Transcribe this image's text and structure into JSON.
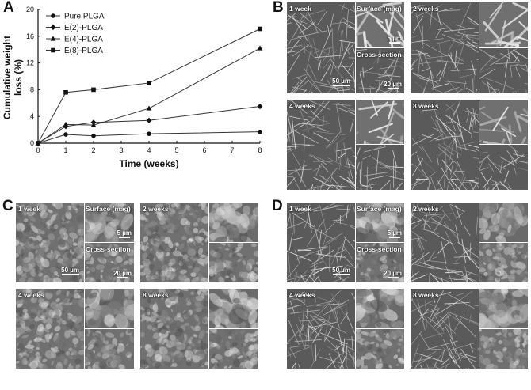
{
  "panels": {
    "A": "A",
    "B": "B",
    "C": "C",
    "D": "D"
  },
  "chart_data": {
    "type": "line",
    "xlabel": "Time (weeks)",
    "ylabel": "Cumulative weight loss (%)",
    "ylabel_lines": [
      "Cumulative weight",
      "loss (%)"
    ],
    "xlim": [
      0,
      8
    ],
    "ylim": [
      0,
      20
    ],
    "xticks": [
      "0",
      "1",
      "2",
      "3",
      "4",
      "5",
      "6",
      "7",
      "8"
    ],
    "yticks": [
      "0",
      "4",
      "8",
      "12",
      "16",
      "20"
    ],
    "legend_position": "top-left",
    "grid": false,
    "series": [
      {
        "name": "Pure PLGA",
        "marker": "circle",
        "x": [
          0,
          1,
          2,
          4,
          8
        ],
        "y": [
          0,
          1.3,
          1.1,
          1.4,
          1.7
        ]
      },
      {
        "name": "E(2)-PLGA",
        "marker": "diamond",
        "x": [
          0,
          1,
          2,
          4,
          8
        ],
        "y": [
          0,
          2.5,
          3.1,
          3.4,
          5.5
        ]
      },
      {
        "name": "E(4)-PLGA",
        "marker": "triangle",
        "x": [
          0,
          1,
          2,
          4,
          8
        ],
        "y": [
          0,
          2.8,
          2.7,
          5.2,
          14.2
        ]
      },
      {
        "name": "E(8)-PLGA",
        "marker": "square",
        "x": [
          0,
          1,
          2,
          4,
          8
        ],
        "y": [
          0,
          7.6,
          8.0,
          9.0,
          17.1
        ]
      }
    ]
  },
  "sem": {
    "B": {
      "tl": {
        "label": "1 week",
        "surface": "Surface (mag)",
        "cross": "Cross-section",
        "scale_main": "50 µm",
        "scale_surface": "5 µm",
        "scale_cross": "20 µm"
      },
      "tr": {
        "label": "2 weeks"
      },
      "bl": {
        "label": "4 weeks"
      },
      "br": {
        "label": "8 weeks"
      }
    },
    "C": {
      "tl": {
        "label": "1 week",
        "surface": "Surface (mag)",
        "cross": "Cross-section",
        "scale_main": "50 µm",
        "scale_surface": "5 µm",
        "scale_cross": "20 µm"
      },
      "tr": {
        "label": "2 weeks"
      },
      "bl": {
        "label": "4 weeks"
      },
      "br": {
        "label": "8 weeks"
      }
    },
    "D": {
      "tl": {
        "label": "1 week",
        "surface": "Surface (mag)",
        "cross": "Cross-section",
        "scale_main": "50 µm",
        "scale_surface": "5 µm",
        "scale_cross": "20 µm"
      },
      "tr": {
        "label": "2 weeks"
      },
      "bl": {
        "label": "4 weeks"
      },
      "br": {
        "label": "8 weeks"
      }
    }
  }
}
